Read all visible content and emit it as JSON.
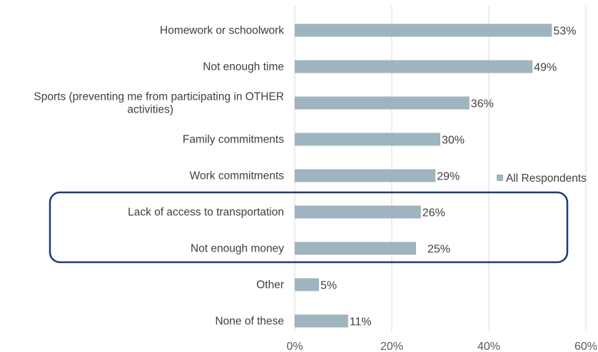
{
  "chart_data": {
    "type": "bar",
    "orientation": "horizontal",
    "categories": [
      [
        "Homework or schoolwork"
      ],
      [
        "Not enough time"
      ],
      [
        "Sports (preventing me from participating in OTHER",
        "activities)"
      ],
      [
        "Family commitments"
      ],
      [
        "Work commitments"
      ],
      [
        "Lack of access to transportation"
      ],
      [
        "Not enough money"
      ],
      [
        "Other"
      ],
      [
        "None of these"
      ]
    ],
    "series": [
      {
        "name": "All Respondents",
        "values": [
          53,
          49,
          36,
          30,
          29,
          26,
          25,
          5,
          11
        ],
        "labels": [
          "53%",
          "49%",
          "36%",
          "30%",
          "29%",
          "26%",
          "25%",
          "5%",
          "11%"
        ]
      }
    ],
    "xlim": [
      0,
      60
    ],
    "xticks": [
      0,
      20,
      40,
      60
    ],
    "xtick_labels": [
      "0%",
      "20%",
      "40%",
      "60%"
    ],
    "grid": "vertical",
    "legend_position": "right",
    "highlight_group": [
      "Lack of access to transportation",
      "Not enough money"
    ],
    "colors": {
      "bar": "#9eb4bf",
      "grid": "#d9d9d9",
      "highlight_box": "#1f3a7a"
    }
  }
}
